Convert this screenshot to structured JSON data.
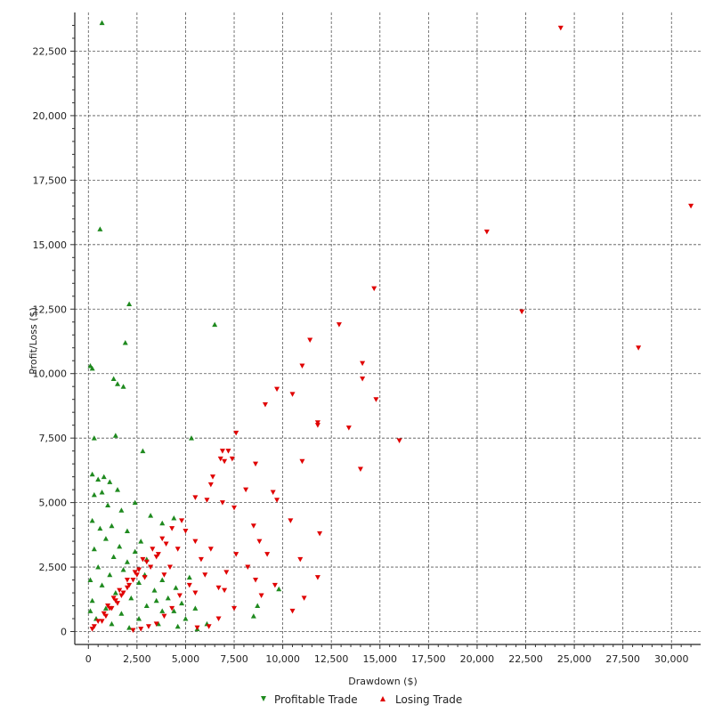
{
  "chart_data": {
    "type": "scatter",
    "xlabel": "Drawdown ($)",
    "ylabel": "Profit/Loss ($)",
    "xlim": [
      -700,
      31500
    ],
    "ylim": [
      -500,
      24000
    ],
    "x_ticks": [
      0,
      2500,
      5000,
      7500,
      10000,
      12500,
      15000,
      17500,
      20000,
      22500,
      25000,
      27500,
      30000
    ],
    "x_tick_labels": [
      "0",
      "2,500",
      "5,000",
      "7,500",
      "10,000",
      "12,500",
      "15,000",
      "17,500",
      "20,000",
      "22,500",
      "25,000",
      "27,500",
      "30,000"
    ],
    "y_ticks": [
      0,
      2500,
      5000,
      7500,
      10000,
      12500,
      15000,
      17500,
      20000,
      22500
    ],
    "y_tick_labels": [
      "0",
      "2,500",
      "5,000",
      "7,500",
      "10,000",
      "12,500",
      "15,000",
      "17,500",
      "20,000",
      "22,500"
    ],
    "grid": true,
    "legend_position": "bottom",
    "series": [
      {
        "name": "Profitable Trade",
        "marker": "triangle-up",
        "color": "#1f8a1f",
        "points": [
          [
            700,
            23600
          ],
          [
            600,
            15600
          ],
          [
            2100,
            12700
          ],
          [
            6500,
            11900
          ],
          [
            1900,
            11200
          ],
          [
            100,
            10300
          ],
          [
            200,
            10200
          ],
          [
            1300,
            9800
          ],
          [
            1500,
            9600
          ],
          [
            1800,
            9500
          ],
          [
            300,
            7500
          ],
          [
            1400,
            7600
          ],
          [
            2800,
            7000
          ],
          [
            5300,
            7500
          ],
          [
            200,
            6100
          ],
          [
            500,
            5900
          ],
          [
            800,
            6000
          ],
          [
            1100,
            5800
          ],
          [
            1500,
            5500
          ],
          [
            300,
            5300
          ],
          [
            700,
            5400
          ],
          [
            2400,
            5000
          ],
          [
            1000,
            4900
          ],
          [
            1700,
            4700
          ],
          [
            3200,
            4500
          ],
          [
            4400,
            4400
          ],
          [
            3800,
            4200
          ],
          [
            200,
            4300
          ],
          [
            600,
            4000
          ],
          [
            1200,
            4100
          ],
          [
            2000,
            3900
          ],
          [
            2700,
            3500
          ],
          [
            900,
            3600
          ],
          [
            1600,
            3300
          ],
          [
            2400,
            3100
          ],
          [
            3000,
            2800
          ],
          [
            300,
            3200
          ],
          [
            1300,
            2900
          ],
          [
            2000,
            2700
          ],
          [
            1800,
            2400
          ],
          [
            2900,
            2200
          ],
          [
            3800,
            2000
          ],
          [
            4500,
            1700
          ],
          [
            5200,
            2100
          ],
          [
            500,
            2500
          ],
          [
            1100,
            2200
          ],
          [
            2600,
            1900
          ],
          [
            3400,
            1600
          ],
          [
            4100,
            1300
          ],
          [
            4800,
            1100
          ],
          [
            5500,
            900
          ],
          [
            700,
            1800
          ],
          [
            1400,
            1500
          ],
          [
            2200,
            1300
          ],
          [
            3000,
            1000
          ],
          [
            3800,
            800
          ],
          [
            200,
            1200
          ],
          [
            900,
            900
          ],
          [
            1700,
            700
          ],
          [
            2600,
            500
          ],
          [
            3600,
            300
          ],
          [
            4600,
            200
          ],
          [
            5600,
            100
          ],
          [
            400,
            500
          ],
          [
            1200,
            300
          ],
          [
            2100,
            150
          ],
          [
            9800,
            1650
          ],
          [
            8700,
            1000
          ],
          [
            8500,
            600
          ],
          [
            6100,
            300
          ],
          [
            5000,
            500
          ],
          [
            4400,
            800
          ],
          [
            3500,
            1200
          ],
          [
            100,
            2000
          ],
          [
            100,
            800
          ]
        ]
      },
      {
        "name": "Losing Trade",
        "marker": "triangle-down",
        "color": "#e00000",
        "points": [
          [
            24300,
            23400
          ],
          [
            31000,
            16500
          ],
          [
            20500,
            15500
          ],
          [
            22300,
            12400
          ],
          [
            28300,
            11000
          ],
          [
            14700,
            13300
          ],
          [
            12900,
            11900
          ],
          [
            11400,
            11300
          ],
          [
            14100,
            10400
          ],
          [
            11000,
            10300
          ],
          [
            14100,
            9800
          ],
          [
            9700,
            9400
          ],
          [
            10500,
            9200
          ],
          [
            14800,
            9000
          ],
          [
            9100,
            8800
          ],
          [
            11800,
            8100
          ],
          [
            11800,
            8000
          ],
          [
            13400,
            7900
          ],
          [
            16000,
            7400
          ],
          [
            7600,
            7700
          ],
          [
            7200,
            7000
          ],
          [
            6900,
            7000
          ],
          [
            7000,
            6600
          ],
          [
            6800,
            6700
          ],
          [
            7400,
            6700
          ],
          [
            8600,
            6500
          ],
          [
            11000,
            6600
          ],
          [
            14000,
            6300
          ],
          [
            6400,
            6000
          ],
          [
            6300,
            5700
          ],
          [
            8100,
            5500
          ],
          [
            9500,
            5400
          ],
          [
            9700,
            5100
          ],
          [
            5500,
            5200
          ],
          [
            6100,
            5100
          ],
          [
            6900,
            5000
          ],
          [
            7500,
            4800
          ],
          [
            10400,
            4300
          ],
          [
            11900,
            3800
          ],
          [
            8500,
            4100
          ],
          [
            8800,
            3500
          ],
          [
            9200,
            3000
          ],
          [
            10900,
            2800
          ],
          [
            11800,
            2100
          ],
          [
            11100,
            1300
          ],
          [
            8600,
            2000
          ],
          [
            8200,
            2500
          ],
          [
            7100,
            2300
          ],
          [
            6700,
            1700
          ],
          [
            5500,
            1500
          ],
          [
            5000,
            3900
          ],
          [
            5500,
            3500
          ],
          [
            6300,
            3200
          ],
          [
            7600,
            3000
          ],
          [
            4600,
            3200
          ],
          [
            4200,
            2500
          ],
          [
            3900,
            2200
          ],
          [
            3500,
            2900
          ],
          [
            3200,
            2500
          ],
          [
            2900,
            2100
          ],
          [
            2600,
            2400
          ],
          [
            2300,
            2000
          ],
          [
            2000,
            1700
          ],
          [
            1700,
            1400
          ],
          [
            1400,
            1200
          ],
          [
            1100,
            900
          ],
          [
            800,
            700
          ],
          [
            500,
            400
          ],
          [
            300,
            200
          ],
          [
            200,
            100
          ],
          [
            4000,
            3400
          ],
          [
            3600,
            3000
          ],
          [
            3000,
            2700
          ],
          [
            2500,
            2200
          ],
          [
            2100,
            1800
          ],
          [
            1800,
            1500
          ],
          [
            1500,
            1100
          ],
          [
            1200,
            900
          ],
          [
            900,
            600
          ],
          [
            700,
            400
          ],
          [
            4800,
            4300
          ],
          [
            4300,
            4000
          ],
          [
            3800,
            3600
          ],
          [
            3300,
            3200
          ],
          [
            2800,
            2800
          ],
          [
            2400,
            2300
          ],
          [
            2000,
            2000
          ],
          [
            1600,
            1600
          ],
          [
            1300,
            1300
          ],
          [
            1000,
            1000
          ],
          [
            5800,
            2800
          ],
          [
            6000,
            2200
          ],
          [
            5200,
            1800
          ],
          [
            4700,
            1400
          ],
          [
            4300,
            900
          ],
          [
            3900,
            600
          ],
          [
            3500,
            300
          ],
          [
            3100,
            200
          ],
          [
            2700,
            100
          ],
          [
            2300,
            50
          ],
          [
            7000,
            1600
          ],
          [
            7500,
            900
          ],
          [
            6700,
            500
          ],
          [
            6200,
            200
          ],
          [
            5600,
            150
          ],
          [
            9600,
            1800
          ],
          [
            10500,
            800
          ],
          [
            8900,
            1400
          ]
        ]
      }
    ]
  }
}
